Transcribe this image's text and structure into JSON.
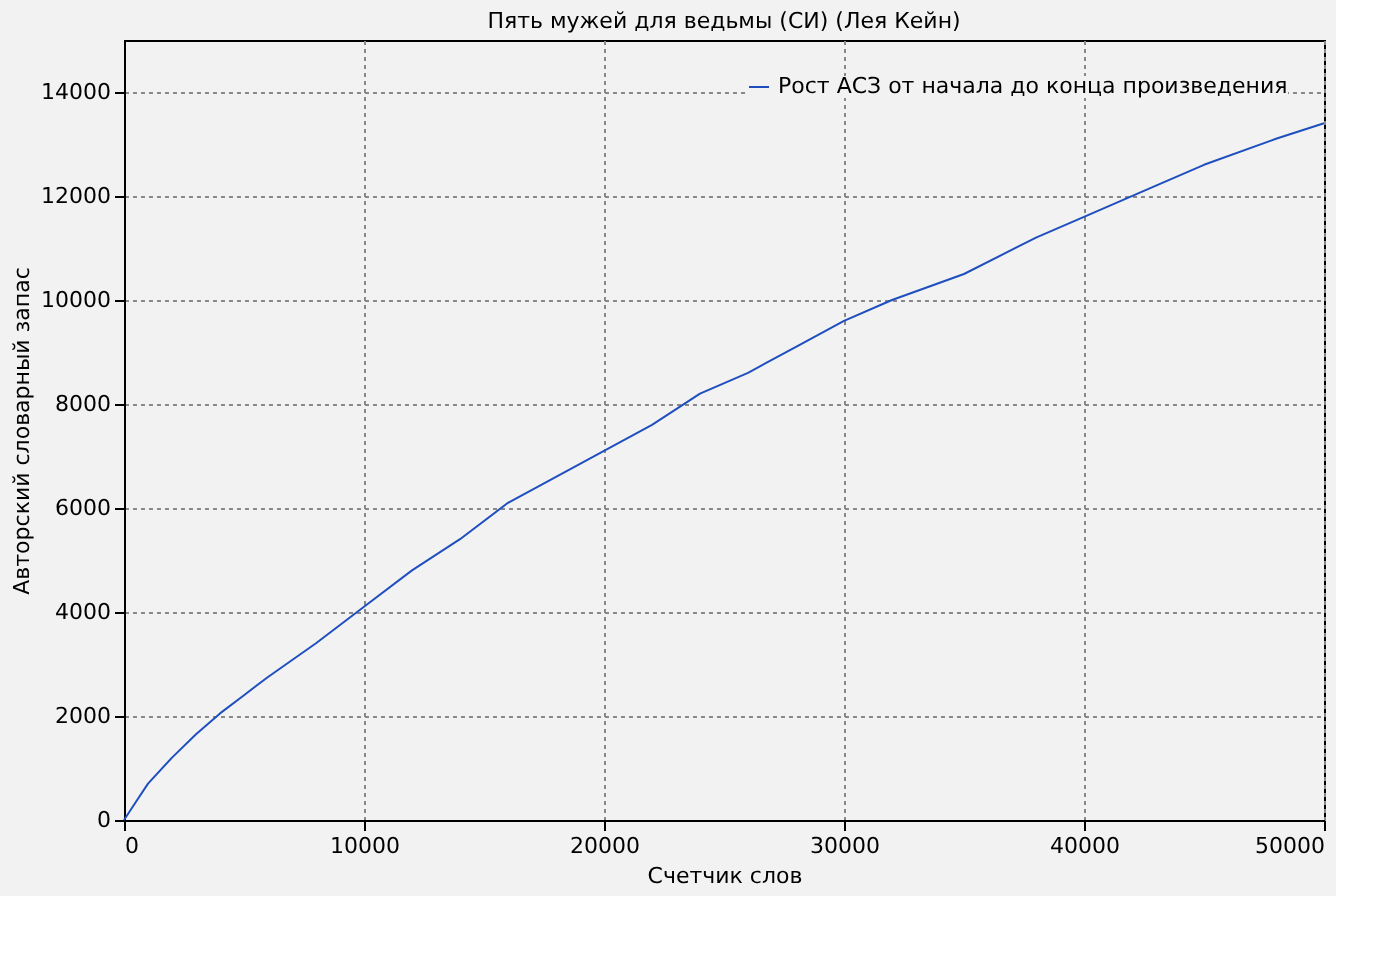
{
  "chart_data": {
    "type": "line",
    "title": "Пять мужей для ведьмы (СИ) (Лея Кейн)",
    "xlabel": "Счетчик слов",
    "ylabel": "Авторский словарный запас",
    "x": [
      0,
      500,
      1000,
      2000,
      3000,
      4000,
      5000,
      6000,
      8000,
      10000,
      12000,
      14000,
      16000,
      18000,
      20000,
      22000,
      24000,
      26000,
      28000,
      30000,
      32000,
      35000,
      38000,
      40000,
      43000,
      45000,
      48000,
      50000
    ],
    "series": [
      {
        "name": "Рост АСЗ от начала до конца произведения",
        "color": "#1f4fbf",
        "values": [
          0,
          350,
          700,
          1200,
          1650,
          2050,
          2400,
          2750,
          3400,
          4100,
          4800,
          5400,
          6100,
          6600,
          7100,
          7600,
          8200,
          8600,
          9100,
          9600,
          10000,
          10500,
          11200,
          11600,
          12200,
          12600,
          13100,
          13400
        ]
      }
    ],
    "xlim": [
      0,
      50000
    ],
    "ylim": [
      0,
      15000
    ],
    "xticks": [
      0,
      10000,
      20000,
      30000,
      40000,
      50000
    ],
    "yticks": [
      0,
      2000,
      4000,
      6000,
      8000,
      10000,
      12000,
      14000
    ],
    "grid": true,
    "legend": "top right",
    "marker": "none",
    "line_style": "solid"
  }
}
